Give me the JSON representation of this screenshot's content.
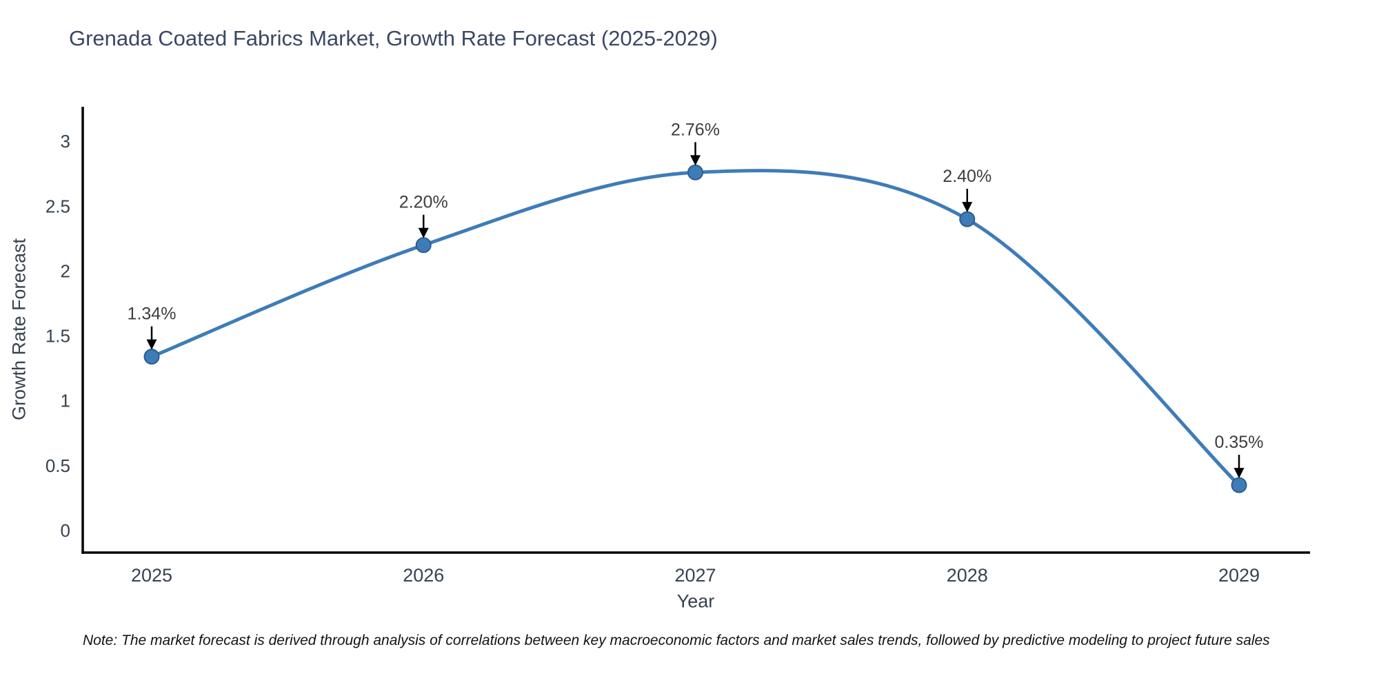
{
  "note": "Note: The market forecast is derived through analysis of correlations between key macroeconomic factors and market sales trends, followed by predictive modeling to project future sales",
  "chart_data": {
    "type": "line",
    "title": "Grenada Coated Fabrics Market, Growth Rate Forecast (2025-2029)",
    "categories": [
      "2025",
      "2026",
      "2027",
      "2028",
      "2029"
    ],
    "values": [
      1.34,
      2.2,
      2.76,
      2.4,
      0.35
    ],
    "point_labels": [
      "1.34%",
      "2.20%",
      "2.76%",
      "2.40%",
      "0.35%"
    ],
    "xlabel": "Year",
    "ylabel": "Growth Rate Forecast",
    "ylim": [
      0,
      3
    ],
    "ytick_values": [
      0,
      0.5,
      1,
      1.5,
      2,
      2.5,
      3
    ],
    "ytick_labels": [
      "0",
      "0.5",
      "1",
      "1.5",
      "2",
      "2.5",
      "3"
    ],
    "grid": false,
    "legend": "none",
    "line_smoothing": "spline",
    "colors": {
      "line": "#3e7cb7",
      "marker_fill": "#3e7cb7",
      "marker_edge": "#2b5d8e",
      "axis": "#000000",
      "tick_text": "#37424f",
      "title_text": "#3a4763",
      "annotation_text": "#3d3d3d",
      "annotation_arrow": "#000000",
      "background": "#ffffff"
    }
  }
}
